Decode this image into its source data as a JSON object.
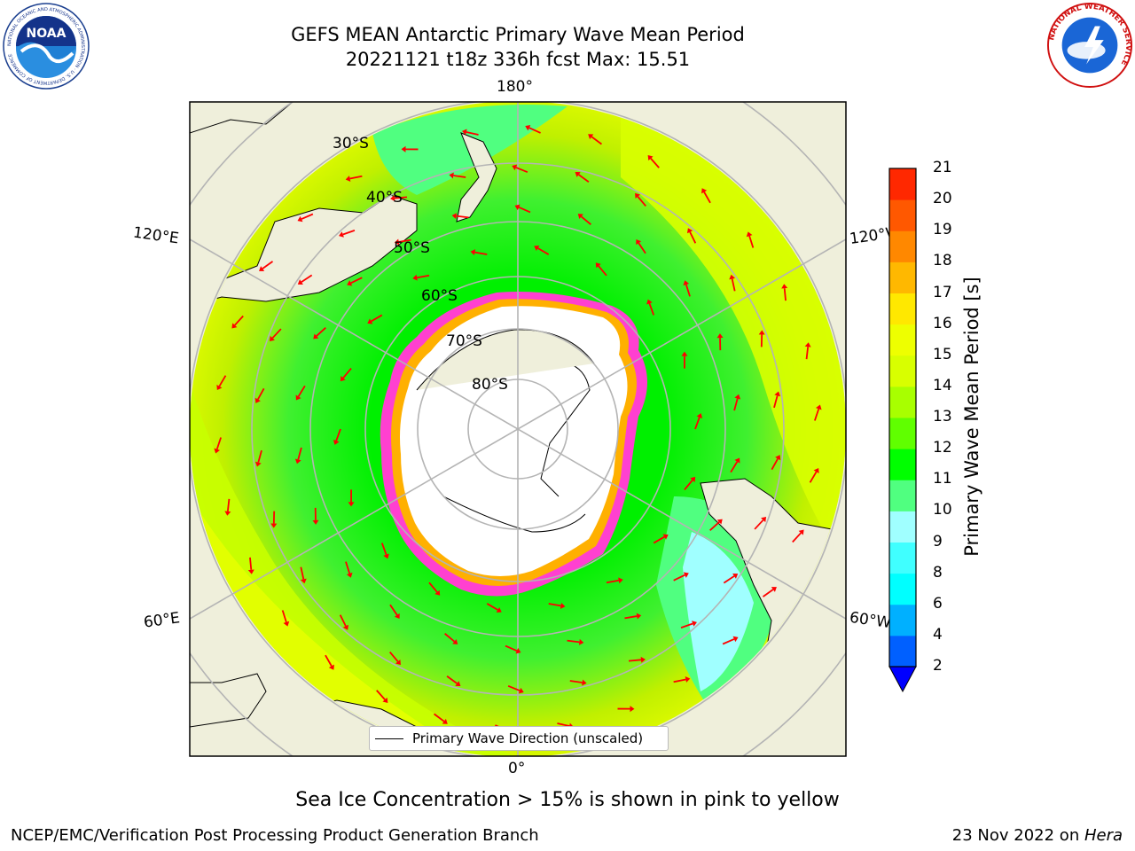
{
  "header": {
    "title_line1": "GEFS MEAN Antarctic Primary Wave Mean Period",
    "title_line2": "20221121 t18z 336h fcst   Max: 15.51"
  },
  "logos": {
    "noaa_text": "NOAA",
    "noaa_ring_text": "NATIONAL OCEANIC AND ATMOSPHERIC ADMINISTRATION · U.S. DEPARTMENT OF COMMERCE",
    "nws_ring_text": "NATIONAL WEATHER SERVICE"
  },
  "map": {
    "longitude_labels": {
      "top": "180°",
      "bottom": "0°",
      "upper_left": "120°E",
      "upper_right": "120°W",
      "lower_left": "60°E",
      "lower_right": "60°W"
    },
    "latitude_labels": [
      "30°S",
      "40°S",
      "50°S",
      "60°S",
      "70°S",
      "80°S"
    ],
    "legend": "Primary Wave Direction (unscaled)",
    "colors": {
      "land": "#efefdb",
      "ice_interior": "#ffffff",
      "arrows": "#ff0000",
      "grid": "#b4b4b4"
    }
  },
  "colorbar": {
    "label": "Primary Wave Mean Period [s]",
    "ticks": [
      "2",
      "4",
      "6",
      "8",
      "9",
      "10",
      "11",
      "12",
      "13",
      "14",
      "15",
      "16",
      "17",
      "18",
      "19",
      "20",
      "21"
    ],
    "colors": [
      "#0060ff",
      "#00b0ff",
      "#00ffff",
      "#40ffff",
      "#a0ffff",
      "#50ff80",
      "#00ff00",
      "#60ff00",
      "#a8ff00",
      "#d8ff00",
      "#eeff00",
      "#ffe800",
      "#ffb800",
      "#ff8800",
      "#ff5800",
      "#ff2800"
    ],
    "extend_color": "#0000ff"
  },
  "caption": "Sea Ice Concentration > 15% is shown in pink to yellow",
  "footer": {
    "left": "NCEP/EMC/Verification Post Processing Product Generation Branch",
    "right_prefix": "23 Nov 2022 on ",
    "right_host": "Hera"
  }
}
